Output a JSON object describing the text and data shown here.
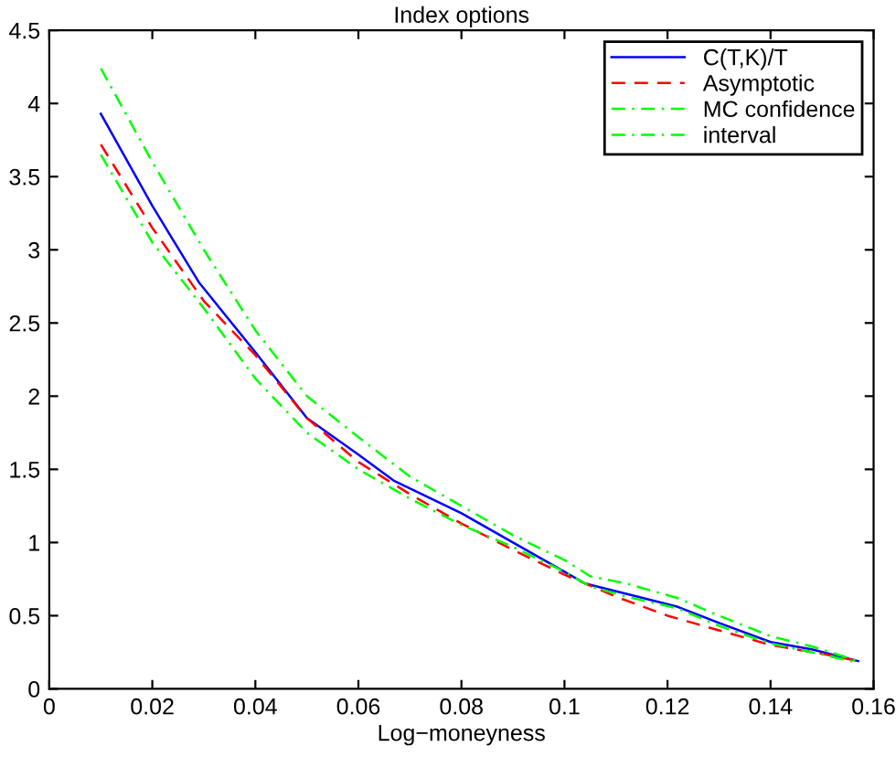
{
  "chart_data": {
    "type": "line",
    "title": "Index options",
    "xlabel": "Log−moneyness",
    "xlim": [
      0,
      0.16
    ],
    "xticks": [
      0,
      0.02,
      0.04,
      0.06,
      0.08,
      0.1,
      0.12,
      0.14,
      0.16
    ],
    "ylim": [
      0,
      4.5
    ],
    "yticks": [
      0,
      0.5,
      1,
      1.5,
      2,
      2.5,
      3,
      3.5,
      4,
      4.5
    ],
    "grid": false,
    "legend": "top right",
    "marker": "none",
    "series": [
      {
        "name": "C(T,K)/T",
        "color": "#0000ff",
        "line_style": "solid",
        "x": [
          0.01,
          0.02,
          0.029,
          0.04,
          0.05,
          0.06,
          0.067,
          0.08,
          0.09,
          0.1,
          0.104,
          0.112,
          0.122,
          0.13,
          0.14,
          0.148,
          0.157
        ],
        "values": [
          3.93,
          3.3,
          2.78,
          2.3,
          1.85,
          1.6,
          1.42,
          1.2,
          1.0,
          0.8,
          0.72,
          0.65,
          0.56,
          0.45,
          0.32,
          0.27,
          0.19
        ]
      },
      {
        "name": "Asymptotic",
        "color": "#ff0000",
        "line_style": "dashed",
        "x": [
          0.01,
          0.02,
          0.03,
          0.04,
          0.05,
          0.06,
          0.07,
          0.08,
          0.09,
          0.1,
          0.11,
          0.12,
          0.13,
          0.14,
          0.15,
          0.157
        ],
        "values": [
          3.72,
          3.15,
          2.65,
          2.28,
          1.85,
          1.55,
          1.33,
          1.13,
          0.95,
          0.78,
          0.63,
          0.5,
          0.4,
          0.3,
          0.24,
          0.19
        ]
      },
      {
        "name": "MC confidence",
        "color": "#00ff00",
        "line_style": "dashdot",
        "x": [
          0.01,
          0.02,
          0.03,
          0.04,
          0.05,
          0.06,
          0.07,
          0.08,
          0.09,
          0.1,
          0.105,
          0.112,
          0.122,
          0.13,
          0.14,
          0.148,
          0.157
        ],
        "values": [
          4.24,
          3.6,
          3.0,
          2.45,
          2.0,
          1.72,
          1.45,
          1.25,
          1.05,
          0.88,
          0.77,
          0.72,
          0.62,
          0.5,
          0.36,
          0.29,
          0.19
        ]
      },
      {
        "name": "interval",
        "color": "#00ff00",
        "line_style": "dashdot",
        "x": [
          0.01,
          0.02,
          0.03,
          0.04,
          0.05,
          0.06,
          0.07,
          0.08,
          0.09,
          0.1,
          0.105,
          0.112,
          0.122,
          0.13,
          0.14,
          0.148,
          0.157
        ],
        "values": [
          3.65,
          3.05,
          2.6,
          2.12,
          1.75,
          1.5,
          1.3,
          1.12,
          0.97,
          0.8,
          0.7,
          0.63,
          0.55,
          0.43,
          0.31,
          0.25,
          0.18
        ]
      }
    ]
  }
}
